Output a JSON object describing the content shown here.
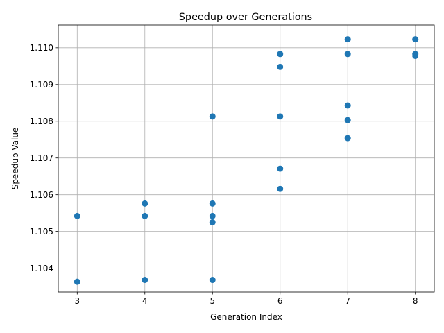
{
  "chart_data": {
    "type": "scatter",
    "title": "Speedup over Generations",
    "xlabel": "Generation Index",
    "ylabel": "Speedup Value",
    "xlim": [
      2.72,
      8.28
    ],
    "ylim": [
      1.10335,
      1.11062
    ],
    "x_ticks": [
      3,
      4,
      5,
      6,
      7,
      8
    ],
    "y_ticks": [
      1.104,
      1.105,
      1.106,
      1.107,
      1.108,
      1.109,
      1.11
    ],
    "y_tick_labels": [
      "1.104",
      "1.105",
      "1.106",
      "1.107",
      "1.108",
      "1.109",
      "1.110"
    ],
    "grid": true,
    "marker_color": "#1f77b4",
    "points": [
      {
        "x": 3,
        "y": 1.10542
      },
      {
        "x": 3,
        "y": 1.10363
      },
      {
        "x": 4,
        "y": 1.10576
      },
      {
        "x": 4,
        "y": 1.10542
      },
      {
        "x": 4,
        "y": 1.10368
      },
      {
        "x": 5,
        "y": 1.10813
      },
      {
        "x": 5,
        "y": 1.10576
      },
      {
        "x": 5,
        "y": 1.10542
      },
      {
        "x": 5,
        "y": 1.10525
      },
      {
        "x": 5,
        "y": 1.10368
      },
      {
        "x": 6,
        "y": 1.10983
      },
      {
        "x": 6,
        "y": 1.10948
      },
      {
        "x": 6,
        "y": 1.10813
      },
      {
        "x": 6,
        "y": 1.10671
      },
      {
        "x": 6,
        "y": 1.10616
      },
      {
        "x": 7,
        "y": 1.11023
      },
      {
        "x": 7,
        "y": 1.10983
      },
      {
        "x": 7,
        "y": 1.10843
      },
      {
        "x": 7,
        "y": 1.10803
      },
      {
        "x": 7,
        "y": 1.10754
      },
      {
        "x": 8,
        "y": 1.11023
      },
      {
        "x": 8,
        "y": 1.10983
      },
      {
        "x": 8,
        "y": 1.10978
      }
    ]
  }
}
